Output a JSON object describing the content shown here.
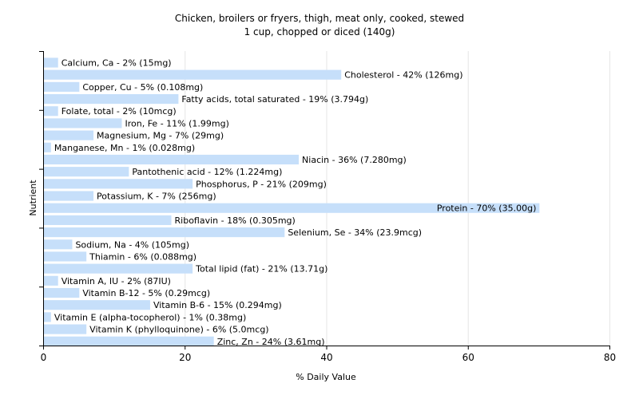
{
  "chart_data": {
    "type": "bar",
    "orientation": "horizontal",
    "title": "Chicken, broilers or fryers, thigh, meat only, cooked, stewed",
    "subtitle": "1 cup, chopped or diced (140g)",
    "xlabel": "% Daily Value",
    "ylabel": "Nutrient",
    "xlim": [
      0,
      80
    ],
    "xticks": [
      "0",
      "20",
      "40",
      "60",
      "80"
    ],
    "grid": true,
    "bar_color": "#c6dffa",
    "categories": [
      "Calcium, Ca - 2% (15mg)",
      "Cholesterol - 42% (126mg)",
      "Copper, Cu - 5% (0.108mg)",
      "Fatty acids, total saturated - 19% (3.794g)",
      "Folate, total - 2% (10mcg)",
      "Iron, Fe - 11% (1.99mg)",
      "Magnesium, Mg - 7% (29mg)",
      "Manganese, Mn - 1% (0.028mg)",
      "Niacin - 36% (7.280mg)",
      "Pantothenic acid - 12% (1.224mg)",
      "Phosphorus, P - 21% (209mg)",
      "Potassium, K - 7% (256mg)",
      "Protein - 70% (35.00g)",
      "Riboflavin - 18% (0.305mg)",
      "Selenium, Se - 34% (23.9mcg)",
      "Sodium, Na - 4% (105mg)",
      "Thiamin - 6% (0.088mg)",
      "Total lipid (fat) - 21% (13.71g)",
      "Vitamin A, IU - 2% (87IU)",
      "Vitamin B-12 - 5% (0.29mcg)",
      "Vitamin B-6 - 15% (0.294mg)",
      "Vitamin E (alpha-tocopherol) - 1% (0.38mg)",
      "Vitamin K (phylloquinone) - 6% (5.0mcg)",
      "Zinc, Zn - 24% (3.61mg)"
    ],
    "values": [
      2,
      42,
      5,
      19,
      2,
      11,
      7,
      1,
      36,
      12,
      21,
      7,
      70,
      18,
      34,
      4,
      6,
      21,
      2,
      5,
      15,
      1,
      6,
      24
    ]
  }
}
